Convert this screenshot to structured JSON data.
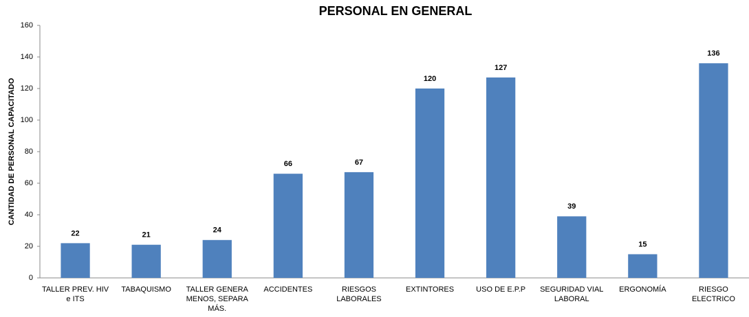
{
  "chart_data": {
    "type": "bar",
    "title": "PERSONAL EN GENERAL",
    "y_axis_label": "CANTIDAD DE PERSONAL CAPACITADO",
    "categories": [
      "TALLER PREV. HIV e ITS",
      "TABAQUISMO",
      "TALLER GENERA MENOS, SEPARA MÁS.",
      "ACCIDENTES",
      "RIESGOS LABORALES",
      "EXTINTORES",
      "USO DE E.P.P",
      "SEGURIDAD VIAL LABORAL",
      "ERGONOMÍA",
      "RIESGO ELECTRICO"
    ],
    "values": [
      22,
      21,
      24,
      66,
      67,
      120,
      127,
      39,
      15,
      136
    ],
    "color": "#4f81bd",
    "ylim": [
      0,
      160
    ],
    "yticks": [
      0,
      20,
      40,
      60,
      80,
      100,
      120,
      140,
      160
    ],
    "grid": false
  }
}
